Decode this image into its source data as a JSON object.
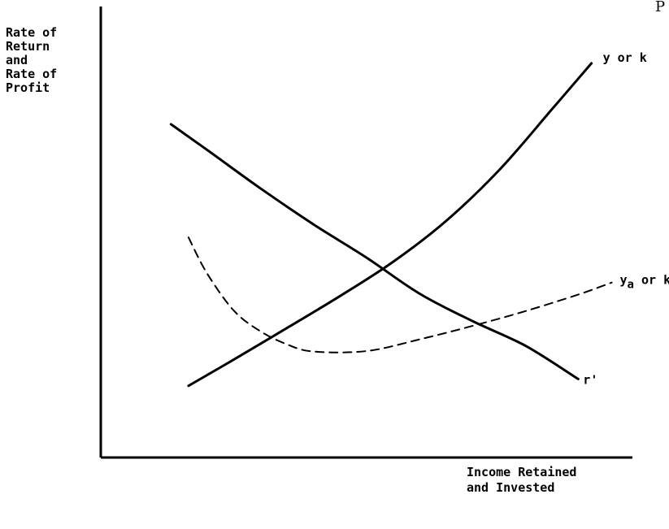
{
  "page_mark": "P",
  "chart_data": {
    "type": "line",
    "title": "",
    "ylabel_lines": [
      "Rate of",
      "Return",
      "and",
      "Rate of",
      "Profit"
    ],
    "xlabel_lines": [
      "Income Retained",
      "and Invested"
    ],
    "xlim": [
      0,
      10
    ],
    "ylim": [
      0,
      10
    ],
    "grid": false,
    "legend": "none",
    "series": [
      {
        "label_main": "y or k",
        "label_sub": "",
        "label_tail": "",
        "style": "solid",
        "color": "#000000",
        "x": [
          1.65,
          2.5,
          3.5,
          4.5,
          5.5,
          6.5,
          7.5,
          8.5,
          9.23
        ],
        "y": [
          1.59,
          2.17,
          2.87,
          3.58,
          4.34,
          5.25,
          6.38,
          7.74,
          8.74
        ]
      },
      {
        "label_main": "r'",
        "label_sub": "",
        "label_tail": "",
        "style": "solid",
        "color": "#000000",
        "x": [
          1.32,
          2,
          3,
          4,
          5,
          6,
          7,
          8,
          8.98
        ],
        "y": [
          7.39,
          6.82,
          5.97,
          5.17,
          4.43,
          3.63,
          3.02,
          2.47,
          1.74
        ]
      },
      {
        "label_main": "y",
        "label_sub": "a",
        "label_tail": " or k",
        "tail_sub": "a",
        "style": "dashed",
        "color": "#000000",
        "x": [
          1.65,
          2,
          2.5,
          3,
          3.5,
          4,
          5,
          6,
          7,
          8,
          9,
          9.61
        ],
        "y": [
          4.88,
          4.08,
          3.26,
          2.8,
          2.51,
          2.35,
          2.36,
          2.62,
          2.92,
          3.25,
          3.62,
          3.88
        ]
      }
    ]
  }
}
